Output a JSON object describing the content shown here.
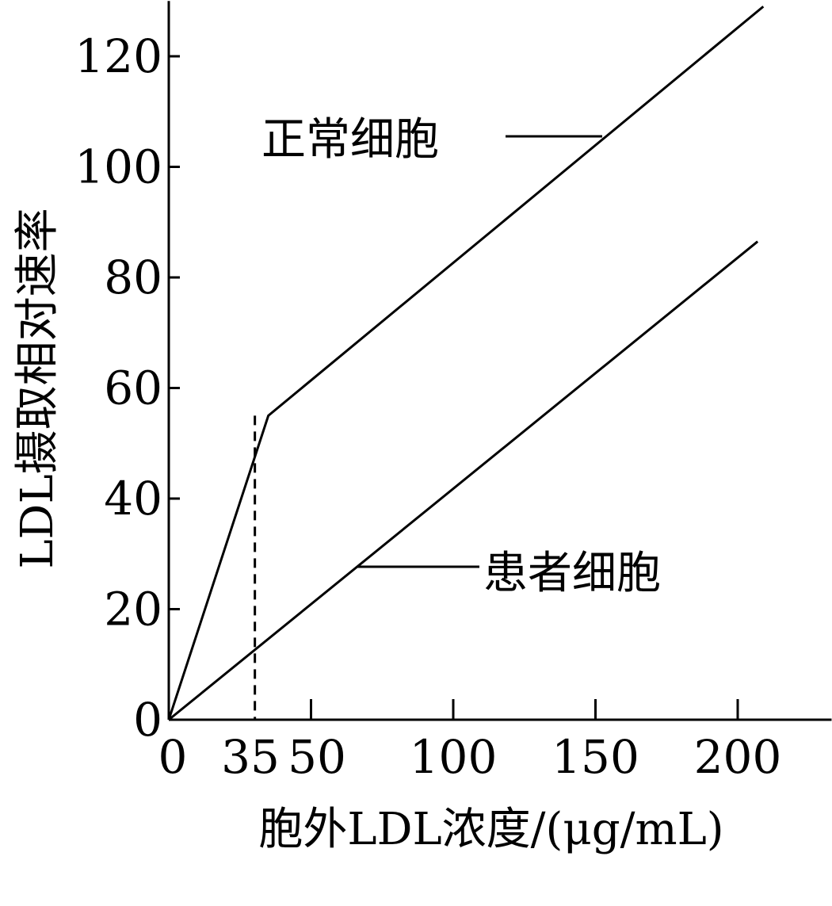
{
  "chart_data": {
    "type": "line",
    "title": "",
    "xlabel": "胞外LDL浓度/(μg/mL)",
    "ylabel": "LDL摄取相对速率",
    "xlim": [
      0,
      233
    ],
    "ylim": [
      0,
      130
    ],
    "grid": false,
    "x_ticks": [
      0,
      35,
      50,
      100,
      150,
      200
    ],
    "y_ticks": [
      0,
      20,
      40,
      60,
      80,
      100,
      120
    ],
    "series": [
      {
        "name": "正常细胞",
        "x": [
          0,
          35,
          209
        ],
        "y": [
          0,
          55,
          129
        ]
      },
      {
        "name": "患者细胞",
        "x": [
          0,
          207
        ],
        "y": [
          0,
          86.5
        ]
      }
    ],
    "annotations": [
      {
        "type": "dashed-drop-line",
        "x": 35,
        "y": 55
      }
    ],
    "line_color": "#000000"
  }
}
